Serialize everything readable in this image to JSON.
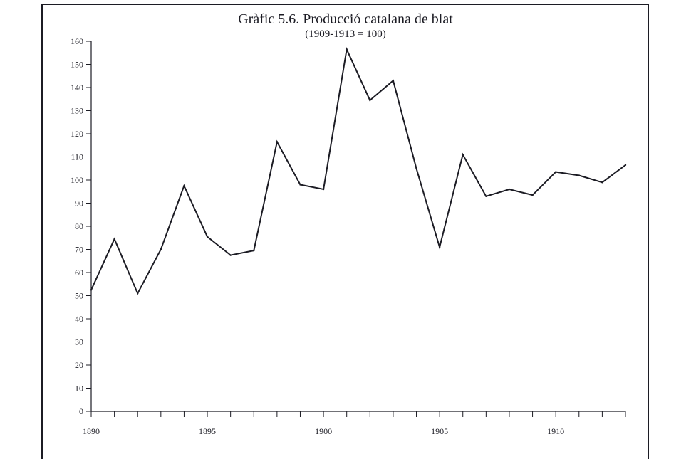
{
  "chart_data": {
    "type": "line",
    "title": "Gràfic 5.6. Producció catalana de blat",
    "subtitle": "(1909-1913 = 100)",
    "xlabel": "",
    "ylabel": "",
    "xlim": [
      1890,
      1913
    ],
    "ylim": [
      0,
      160
    ],
    "x_ticks": [
      1890,
      1895,
      1900,
      1905,
      1910
    ],
    "y_ticks": [
      0,
      10,
      20,
      30,
      40,
      50,
      60,
      70,
      80,
      90,
      100,
      110,
      120,
      130,
      140,
      150,
      160
    ],
    "grid": false,
    "legend": "none",
    "line_color": "#1c1c24",
    "series": [
      {
        "x": [
          1890,
          1891,
          1892,
          1893,
          1894,
          1895,
          1896,
          1897,
          1898,
          1899,
          1900,
          1901,
          1902,
          1903,
          1904,
          1905,
          1906,
          1907,
          1908,
          1909,
          1910,
          1911,
          1912,
          1913
        ],
        "values": [
          52.5,
          74.5,
          51,
          70,
          97.5,
          75.5,
          67.5,
          69.5,
          116.5,
          98,
          96,
          156.5,
          134.5,
          143,
          105,
          71,
          111,
          93,
          96,
          93.5,
          103.5,
          102,
          99,
          106.5
        ]
      }
    ]
  }
}
